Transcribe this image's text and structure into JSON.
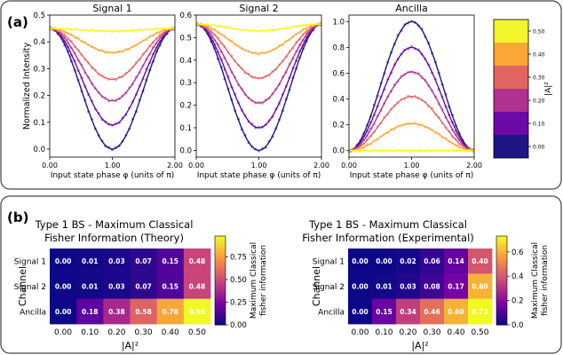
{
  "panel_a": {
    "label": "(a)",
    "colorbar": {
      "label": "|A|²",
      "ticks": [
        "0.00",
        "0.10",
        "0.20",
        "0.30",
        "0.40",
        "0.50"
      ],
      "colors": [
        "#1d1685",
        "#6b0aa6",
        "#b1318f",
        "#e16462",
        "#fca636",
        "#f4f42a"
      ]
    }
  },
  "panel_b": {
    "label": "(b)",
    "colorbar_label_1": "Maximum Classical",
    "colorbar_label_2": "fisher information"
  },
  "chart_data": [
    {
      "type": "line",
      "title": "Signal 1",
      "xlabel": "Input state phase φ (units of π)",
      "ylabel": "Normalized Intensity",
      "xlim": [
        0,
        2
      ],
      "ylim": [
        -0.03,
        0.5
      ],
      "xticks": [
        "0.00",
        "1.00",
        "2.00"
      ],
      "yticks": [
        "0.0",
        "0.1",
        "0.2",
        "0.3",
        "0.4",
        "0.5"
      ],
      "series": [
        {
          "A2": 0.0,
          "color": "#1d1685",
          "min": 0.0,
          "max": 0.45
        },
        {
          "A2": 0.1,
          "color": "#6b0aa6",
          "min": 0.09,
          "max": 0.45
        },
        {
          "A2": 0.2,
          "color": "#b1318f",
          "min": 0.18,
          "max": 0.45
        },
        {
          "A2": 0.3,
          "color": "#e16462",
          "min": 0.26,
          "max": 0.45
        },
        {
          "A2": 0.4,
          "color": "#fca636",
          "min": 0.36,
          "max": 0.45
        },
        {
          "A2": 0.5,
          "color": "#f4f42a",
          "min": 0.44,
          "max": 0.45
        }
      ]
    },
    {
      "type": "line",
      "title": "Signal 2",
      "xlabel": "Input state phase φ (units of π)",
      "xlim": [
        0,
        2
      ],
      "ylim": [
        -0.03,
        0.6
      ],
      "xticks": [
        "0.00",
        "1.00",
        "2.00"
      ],
      "yticks": [
        "0.0",
        "0.1",
        "0.2",
        "0.3",
        "0.4",
        "0.5",
        "0.6"
      ],
      "series": [
        {
          "A2": 0.0,
          "color": "#1d1685",
          "min": 0.0,
          "max": 0.56
        },
        {
          "A2": 0.1,
          "color": "#6b0aa6",
          "min": 0.1,
          "max": 0.56
        },
        {
          "A2": 0.2,
          "color": "#b1318f",
          "min": 0.21,
          "max": 0.56
        },
        {
          "A2": 0.3,
          "color": "#e16462",
          "min": 0.32,
          "max": 0.56
        },
        {
          "A2": 0.4,
          "color": "#fca636",
          "min": 0.43,
          "max": 0.56
        },
        {
          "A2": 0.5,
          "color": "#f4f42a",
          "min": 0.53,
          "max": 0.56
        }
      ]
    },
    {
      "type": "line",
      "title": "Ancilla",
      "xlabel": "Input state phase φ (units of π)",
      "xlim": [
        0,
        2
      ],
      "ylim": [
        -0.05,
        1.05
      ],
      "xticks": [
        "0.00",
        "1.00",
        "2.00"
      ],
      "yticks": [
        "0.0",
        "0.2",
        "0.4",
        "0.6",
        "0.8",
        "1.0"
      ],
      "series": [
        {
          "A2": 0.0,
          "color": "#1d1685",
          "min": 0.0,
          "max": 1.0
        },
        {
          "A2": 0.1,
          "color": "#6b0aa6",
          "min": 0.0,
          "max": 0.8
        },
        {
          "A2": 0.2,
          "color": "#b1318f",
          "min": 0.0,
          "max": 0.61
        },
        {
          "A2": 0.3,
          "color": "#e16462",
          "min": 0.0,
          "max": 0.42
        },
        {
          "A2": 0.4,
          "color": "#fca636",
          "min": 0.0,
          "max": 0.21
        },
        {
          "A2": 0.5,
          "color": "#f4f42a",
          "min": 0.0,
          "max": 0.0
        }
      ]
    },
    {
      "type": "heatmap",
      "title_line1": "Type 1 BS - Maximum Classical",
      "title_line2": "Fisher Information (Theory)",
      "xlabel": "|A|²",
      "ylabel": "Channel",
      "x": [
        "0.00",
        "0.10",
        "0.20",
        "0.30",
        "0.40",
        "0.50"
      ],
      "y": [
        "Signal 1",
        "Signal 2",
        "Ancilla"
      ],
      "values": [
        [
          0.0,
          0.01,
          0.03,
          0.07,
          0.15,
          0.48
        ],
        [
          0.0,
          0.01,
          0.03,
          0.07,
          0.15,
          0.48
        ],
        [
          0.0,
          0.18,
          0.38,
          0.58,
          0.78,
          0.98
        ]
      ],
      "vmin": 0,
      "vmax": 0.98,
      "colorbar_ticks": [
        "0.00",
        "0.25",
        "0.50",
        "0.75"
      ]
    },
    {
      "type": "heatmap",
      "title_line1": "Type 1 BS - Maximum Classical",
      "title_line2": "Fisher Information (Experimental)",
      "xlabel": "|A|²",
      "ylabel": "Channel",
      "x": [
        "0.00",
        "0.10",
        "0.20",
        "0.30",
        "0.40",
        "0.50"
      ],
      "y": [
        "Signal 1",
        "Signal 2",
        "Ancilla"
      ],
      "values": [
        [
          0.0,
          0.0,
          0.02,
          0.06,
          0.14,
          0.4
        ],
        [
          0.0,
          0.01,
          0.03,
          0.08,
          0.17,
          0.6
        ],
        [
          0.0,
          0.15,
          0.34,
          0.46,
          0.6,
          0.73
        ]
      ],
      "vmin": 0,
      "vmax": 0.73,
      "colorbar_ticks": [
        "0.0",
        "0.2",
        "0.4",
        "0.6"
      ]
    }
  ]
}
